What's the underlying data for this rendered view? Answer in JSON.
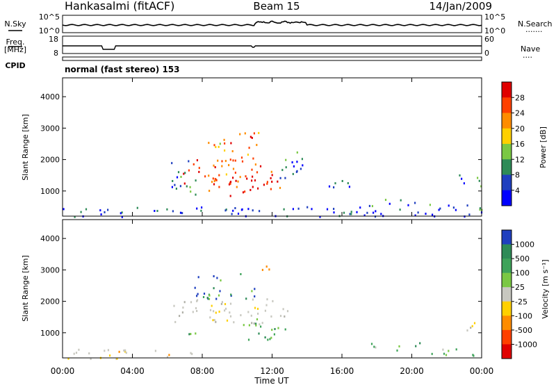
{
  "header": {
    "station": "Hankasalmi (fitACF)",
    "beam": "Beam 15",
    "date": "14/Jan/2009"
  },
  "noise_panel": {
    "left_label": "N.Sky",
    "left_ticks": [
      "10^5",
      "10^0"
    ],
    "right_ticks": [
      "10^5",
      "10^0"
    ],
    "right_label": "N.Search",
    "right_legend": "......."
  },
  "freq_panel": {
    "left_label_1": "Freq.",
    "left_label_2": "[MHz]",
    "left_ticks": [
      "18",
      "8"
    ],
    "right_ticks": [
      "60",
      "0"
    ],
    "right_label": "Nave",
    "right_legend": "...."
  },
  "cpid_panel": {
    "label": "CPID",
    "mode": "normal (fast stereo) 153"
  },
  "chart_data": [
    {
      "type": "heatmap",
      "name": "power",
      "ylabel": "Slant Range [km]",
      "yticks": [
        1000,
        2000,
        3000,
        4000
      ],
      "ylim": [
        200,
        4600
      ],
      "xlim": [
        0,
        24
      ],
      "xticks": [
        "00:00",
        "04:00",
        "08:00",
        "12:00",
        "16:00",
        "20:00",
        "00:00"
      ],
      "colorbar": {
        "label": "Power [dB]",
        "ticks": [
          "28",
          "24",
          "20",
          "16",
          "12",
          "8",
          "4"
        ],
        "colors": [
          "#e00000",
          "#ff4000",
          "#ff8c00",
          "#ffd000",
          "#7ac843",
          "#2e8b57",
          "#1f3fbf",
          "#0000ff"
        ]
      },
      "regions": [
        {
          "t0": 6.8,
          "t1": 12.0,
          "r0": 1150,
          "r1": 2050,
          "level": 0.85
        },
        {
          "t0": 8.2,
          "t1": 11.2,
          "r0": 1950,
          "r1": 2900,
          "level": 0.7
        },
        {
          "t0": 9.5,
          "t1": 12.5,
          "r0": 850,
          "r1": 1500,
          "level": 0.9
        },
        {
          "t0": 6.2,
          "t1": 7.6,
          "r0": 1050,
          "r1": 2150,
          "level": 0.2
        },
        {
          "t0": 12.2,
          "t1": 13.8,
          "r0": 1300,
          "r1": 2300,
          "level": 0.25
        },
        {
          "t0": 7.0,
          "t1": 8.6,
          "r0": 850,
          "r1": 1050,
          "level": 0.45
        },
        {
          "t0": 15.2,
          "t1": 16.6,
          "r0": 1000,
          "r1": 1450,
          "level": 0.15
        },
        {
          "t0": 17.5,
          "t1": 20.5,
          "r0": 500,
          "r1": 760,
          "level": 0.3
        },
        {
          "t0": 20.5,
          "t1": 24.0,
          "r0": 380,
          "r1": 620,
          "level": 0.2
        },
        {
          "t0": 22.6,
          "t1": 24.0,
          "r0": 1100,
          "r1": 1550,
          "level": 0.15
        },
        {
          "t0": 0.0,
          "t1": 24.0,
          "r0": 200,
          "r1": 520,
          "level": 0.1
        }
      ]
    },
    {
      "type": "heatmap",
      "name": "velocity",
      "ylabel": "Slant Range [km]",
      "yticks": [
        1000,
        2000,
        3000,
        4000
      ],
      "ylim": [
        200,
        4600
      ],
      "xlim": [
        0,
        24
      ],
      "xticks": [
        "00:00",
        "04:00",
        "08:00",
        "12:00",
        "16:00",
        "20:00",
        "00:00"
      ],
      "xlabel": "Time UT",
      "colorbar": {
        "label": "Velocity [m s⁻¹]",
        "ticks": [
          "1000",
          "500",
          "100",
          "25",
          "-25",
          "-100",
          "-500",
          "-1000"
        ],
        "colors": [
          "#1f3fbf",
          "#2e8b57",
          "#3ea35a",
          "#7ac843",
          "#c8c8c0",
          "#ffd000",
          "#ff8c00",
          "#ff4000",
          "#e00000"
        ]
      },
      "regions": [
        {
          "t0": 6.3,
          "t1": 13.2,
          "r0": 1300,
          "r1": 2100,
          "cls": "gray"
        },
        {
          "t0": 7.5,
          "t1": 11.0,
          "r0": 2100,
          "r1": 2900,
          "cls": "blue"
        },
        {
          "t0": 10.0,
          "t1": 12.8,
          "r0": 800,
          "r1": 1500,
          "cls": "green"
        },
        {
          "t0": 11.0,
          "t1": 12.0,
          "r0": 2800,
          "r1": 3150,
          "cls": "orange"
        },
        {
          "t0": 7.2,
          "t1": 8.8,
          "r0": 850,
          "r1": 1050,
          "cls": "green"
        },
        {
          "t0": 17.5,
          "t1": 20.5,
          "r0": 450,
          "r1": 720,
          "cls": "green"
        },
        {
          "t0": 20.5,
          "t1": 24.0,
          "r0": 300,
          "r1": 560,
          "cls": "green"
        },
        {
          "t0": 22.6,
          "t1": 24.0,
          "r0": 1100,
          "r1": 1450,
          "cls": "gray"
        },
        {
          "t0": 0.0,
          "t1": 8.0,
          "r0": 200,
          "r1": 500,
          "cls": "ground"
        }
      ]
    }
  ]
}
